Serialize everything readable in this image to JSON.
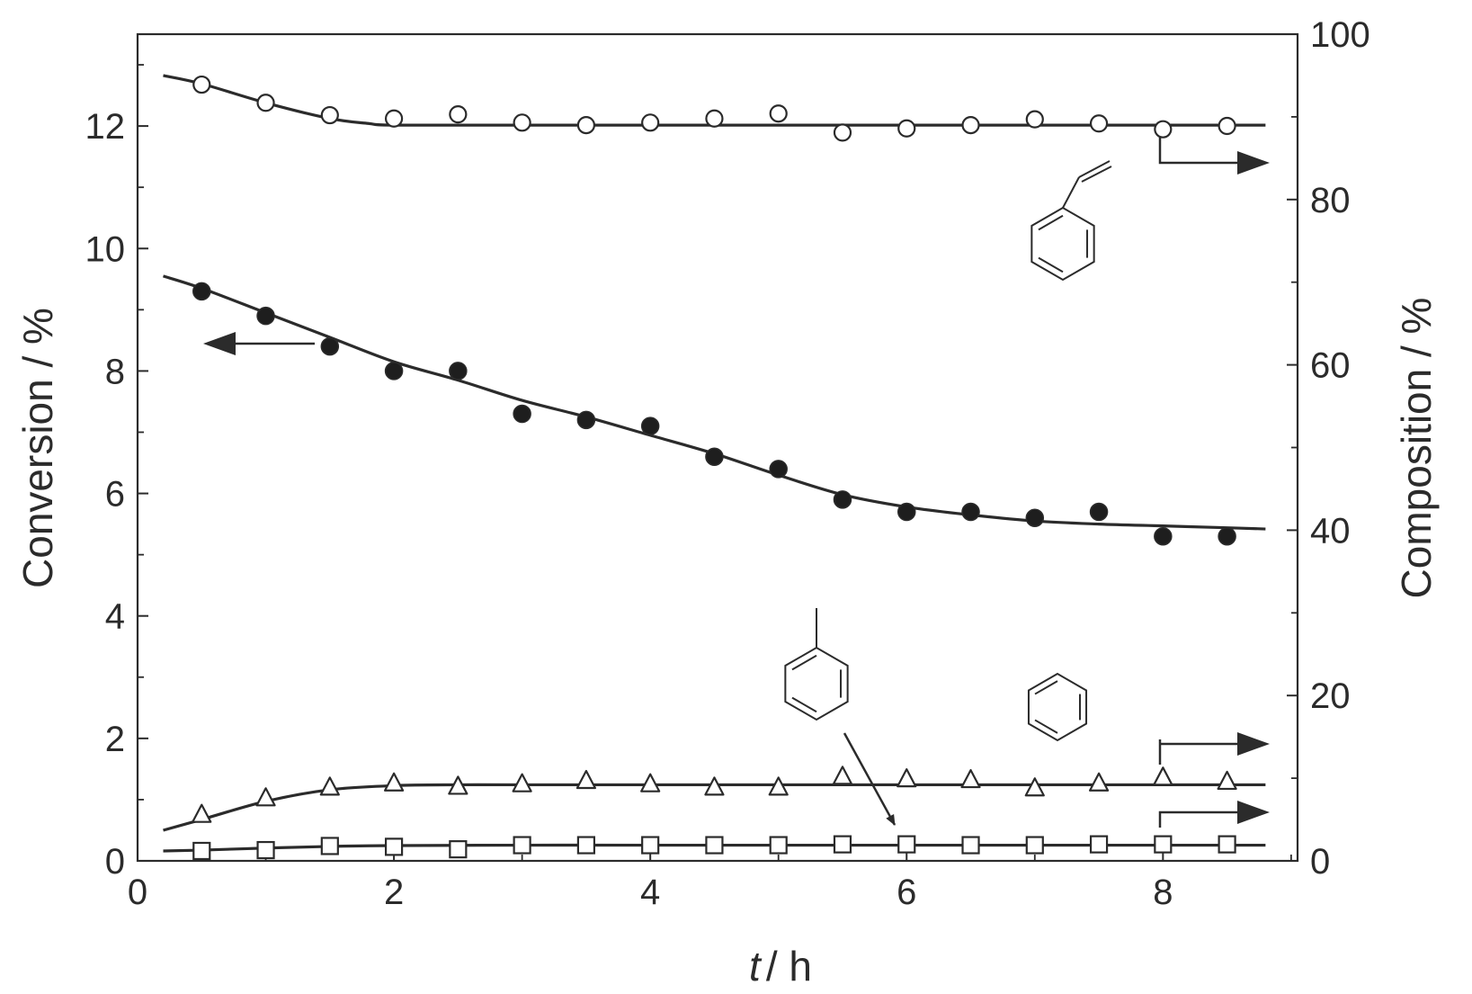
{
  "chart_data": {
    "type": "scatter",
    "title": "",
    "xlabel": {
      "italic": "t",
      "rest": "/ h"
    },
    "ylabel_left": "Conversion / %",
    "ylabel_right": "Composition / %",
    "xlim": [
      0,
      9.05
    ],
    "ylim_left": [
      0,
      13.5
    ],
    "ylim_right": [
      0,
      100
    ],
    "x_ticks": [
      0,
      2,
      4,
      6,
      8
    ],
    "y_left_ticks": [
      0,
      2,
      4,
      6,
      8,
      10,
      12
    ],
    "y_right_ticks": [
      0,
      20,
      40,
      60,
      80,
      100
    ],
    "grid": false,
    "series": [
      {
        "marker": "filled-circle",
        "axis": "left",
        "x": [
          0.5,
          1.0,
          1.5,
          2.0,
          2.5,
          3.0,
          3.5,
          4.0,
          4.5,
          5.0,
          5.5,
          6.0,
          6.5,
          7.0,
          7.5,
          8.0,
          8.5
        ],
        "y": [
          9.3,
          8.9,
          8.4,
          8.0,
          8.0,
          7.3,
          7.2,
          7.1,
          6.6,
          6.4,
          5.9,
          5.7,
          5.7,
          5.6,
          5.7,
          5.3,
          5.3
        ],
        "fit_x": [
          0.2,
          0.5,
          1.0,
          1.5,
          2.0,
          2.5,
          3.0,
          3.5,
          4.0,
          4.5,
          5.0,
          5.5,
          6.0,
          6.5,
          7.0,
          7.5,
          8.0,
          8.5,
          8.8
        ],
        "fit_y": [
          9.55,
          9.35,
          8.95,
          8.55,
          8.15,
          7.85,
          7.52,
          7.25,
          6.95,
          6.65,
          6.3,
          5.98,
          5.78,
          5.65,
          5.55,
          5.5,
          5.47,
          5.44,
          5.42
        ]
      },
      {
        "marker": "open-circle",
        "axis": "right",
        "x": [
          0.5,
          1.0,
          1.5,
          2.0,
          2.5,
          3.0,
          3.5,
          4.0,
          4.5,
          5.0,
          5.5,
          6.0,
          6.5,
          7.0,
          7.5,
          8.0,
          8.5
        ],
        "y": [
          93.9,
          91.7,
          90.2,
          89.8,
          90.3,
          89.3,
          89.0,
          89.3,
          89.8,
          90.4,
          88.1,
          88.6,
          89.0,
          89.7,
          89.2,
          88.5,
          88.9
        ],
        "fit_x": [
          0.2,
          0.5,
          1.0,
          1.5,
          1.8,
          2.0,
          3.0,
          4.0,
          5.0,
          6.0,
          7.0,
          8.0,
          8.8
        ],
        "fit_y": [
          95.0,
          94.0,
          91.7,
          89.8,
          89.2,
          89.0,
          89.0,
          89.0,
          89.0,
          89.0,
          89.0,
          89.0,
          89.0
        ]
      },
      {
        "marker": "open-triangle",
        "axis": "right",
        "x": [
          0.5,
          1.0,
          1.5,
          2.0,
          2.5,
          3.0,
          3.5,
          4.0,
          4.5,
          5.0,
          5.5,
          6.0,
          6.5,
          7.0,
          7.5,
          8.0,
          8.5
        ],
        "y": [
          5.5,
          7.5,
          8.8,
          9.3,
          8.9,
          9.2,
          9.6,
          9.2,
          8.8,
          8.8,
          10.1,
          9.8,
          9.7,
          8.7,
          9.3,
          10.0,
          9.5
        ],
        "fit_x": [
          0.2,
          0.5,
          1.0,
          1.5,
          2.0,
          2.5,
          3.0,
          4.0,
          5.0,
          6.0,
          7.0,
          8.0,
          8.8
        ],
        "fit_y": [
          3.7,
          5.0,
          7.2,
          8.6,
          9.1,
          9.2,
          9.2,
          9.2,
          9.2,
          9.2,
          9.2,
          9.2,
          9.2
        ]
      },
      {
        "marker": "open-square",
        "axis": "right",
        "x": [
          0.5,
          1.0,
          1.5,
          2.0,
          2.5,
          3.0,
          3.5,
          4.0,
          4.5,
          5.0,
          5.5,
          6.0,
          6.5,
          7.0,
          7.5,
          8.0,
          8.5
        ],
        "y": [
          1.2,
          1.3,
          1.8,
          1.7,
          1.4,
          1.9,
          1.9,
          1.9,
          1.9,
          1.9,
          2.0,
          2.0,
          1.9,
          1.9,
          2.0,
          2.0,
          2.0
        ],
        "fit_x": [
          0.2,
          0.5,
          1.0,
          1.5,
          2.0,
          3.0,
          4.0,
          5.0,
          6.0,
          7.0,
          8.0,
          8.8
        ],
        "fit_y": [
          1.2,
          1.3,
          1.55,
          1.75,
          1.85,
          1.9,
          1.9,
          1.9,
          1.9,
          1.9,
          1.9,
          1.9
        ]
      }
    ],
    "annotations": [
      {
        "arrow": "left",
        "points_to": "left-axis",
        "series_marker": "filled-circle"
      },
      {
        "arrow": "right",
        "points_to": "right-axis",
        "series_marker": "open-circle"
      },
      {
        "arrow": "right",
        "points_to": "right-axis",
        "series_marker": "open-triangle"
      },
      {
        "arrow": "right",
        "points_to": "right-axis",
        "series_marker": "open-square"
      },
      {
        "structure": "styrene",
        "labels_series": "open-circle"
      },
      {
        "structure": "toluene",
        "labels_series": "open-square"
      },
      {
        "structure": "benzene",
        "labels_series": "open-triangle"
      }
    ],
    "colors": {
      "ink": "#2b2b2b",
      "marker_fill_open": "#ffffff",
      "marker_fill_filled": "#1e1e1e"
    }
  }
}
